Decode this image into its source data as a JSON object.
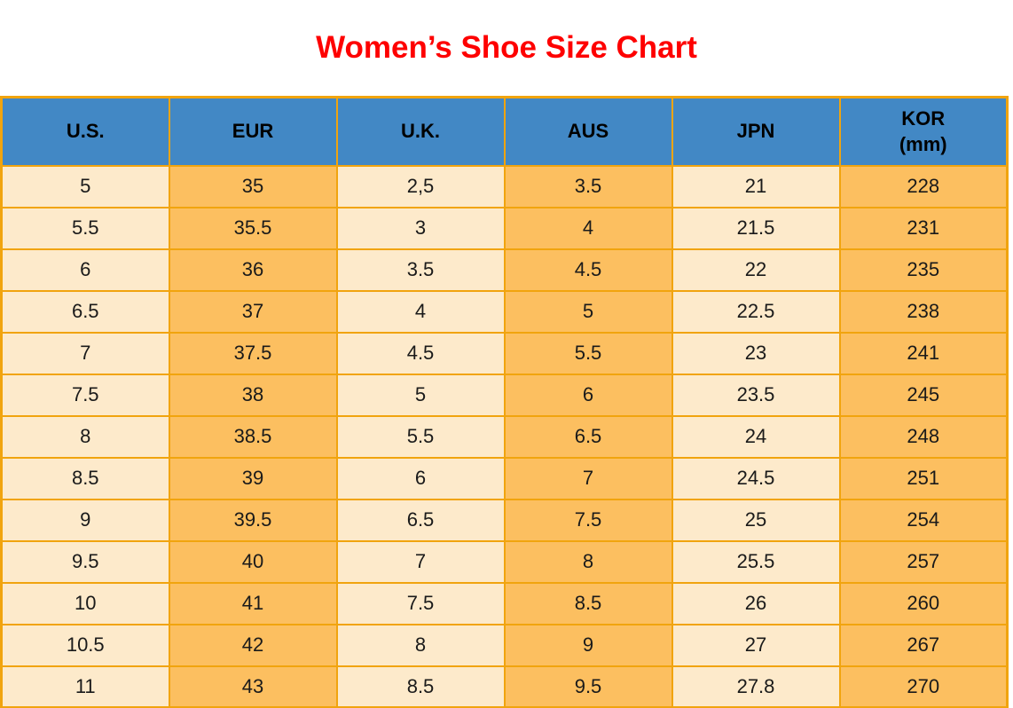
{
  "page": {
    "title": "Women’s Shoe Size Chart"
  },
  "colors": {
    "title_red": "#fe0000",
    "header_blue": "#4288c5",
    "cell_cream": "#fdeacb",
    "cell_orange": "#fcbf60",
    "grid_border": "#f1a40e",
    "text_dark": "#1a1a1a"
  },
  "chart_data": {
    "type": "table",
    "title": "Women’s Shoe Size Chart",
    "columns": [
      {
        "label": "U.S."
      },
      {
        "label": "EUR"
      },
      {
        "label": "U.K."
      },
      {
        "label": "AUS"
      },
      {
        "label": "JPN"
      },
      {
        "label": "KOR",
        "sublabel": "(mm)"
      }
    ],
    "rows": [
      [
        "5",
        "35",
        "2,5",
        "3.5",
        "21",
        "228"
      ],
      [
        "5.5",
        "35.5",
        "3",
        "4",
        "21.5",
        "231"
      ],
      [
        "6",
        "36",
        "3.5",
        "4.5",
        "22",
        "235"
      ],
      [
        "6.5",
        "37",
        "4",
        "5",
        "22.5",
        "238"
      ],
      [
        "7",
        "37.5",
        "4.5",
        "5.5",
        "23",
        "241"
      ],
      [
        "7.5",
        "38",
        "5",
        "6",
        "23.5",
        "245"
      ],
      [
        "8",
        "38.5",
        "5.5",
        "6.5",
        "24",
        "248"
      ],
      [
        "8.5",
        "39",
        "6",
        "7",
        "24.5",
        "251"
      ],
      [
        "9",
        "39.5",
        "6.5",
        "7.5",
        "25",
        "254"
      ],
      [
        "9.5",
        "40",
        "7",
        "8",
        "25.5",
        "257"
      ],
      [
        "10",
        "41",
        "7.5",
        "8.5",
        "26",
        "260"
      ],
      [
        "10.5",
        "42",
        "8",
        "9",
        "27",
        "267"
      ],
      [
        "11",
        "43",
        "8.5",
        "9.5",
        "27.8",
        "270"
      ]
    ],
    "layout": {
      "header_fill": "blue",
      "column_fill_pattern": [
        "cream",
        "orange",
        "cream",
        "orange",
        "cream",
        "orange"
      ],
      "grid": true
    }
  }
}
